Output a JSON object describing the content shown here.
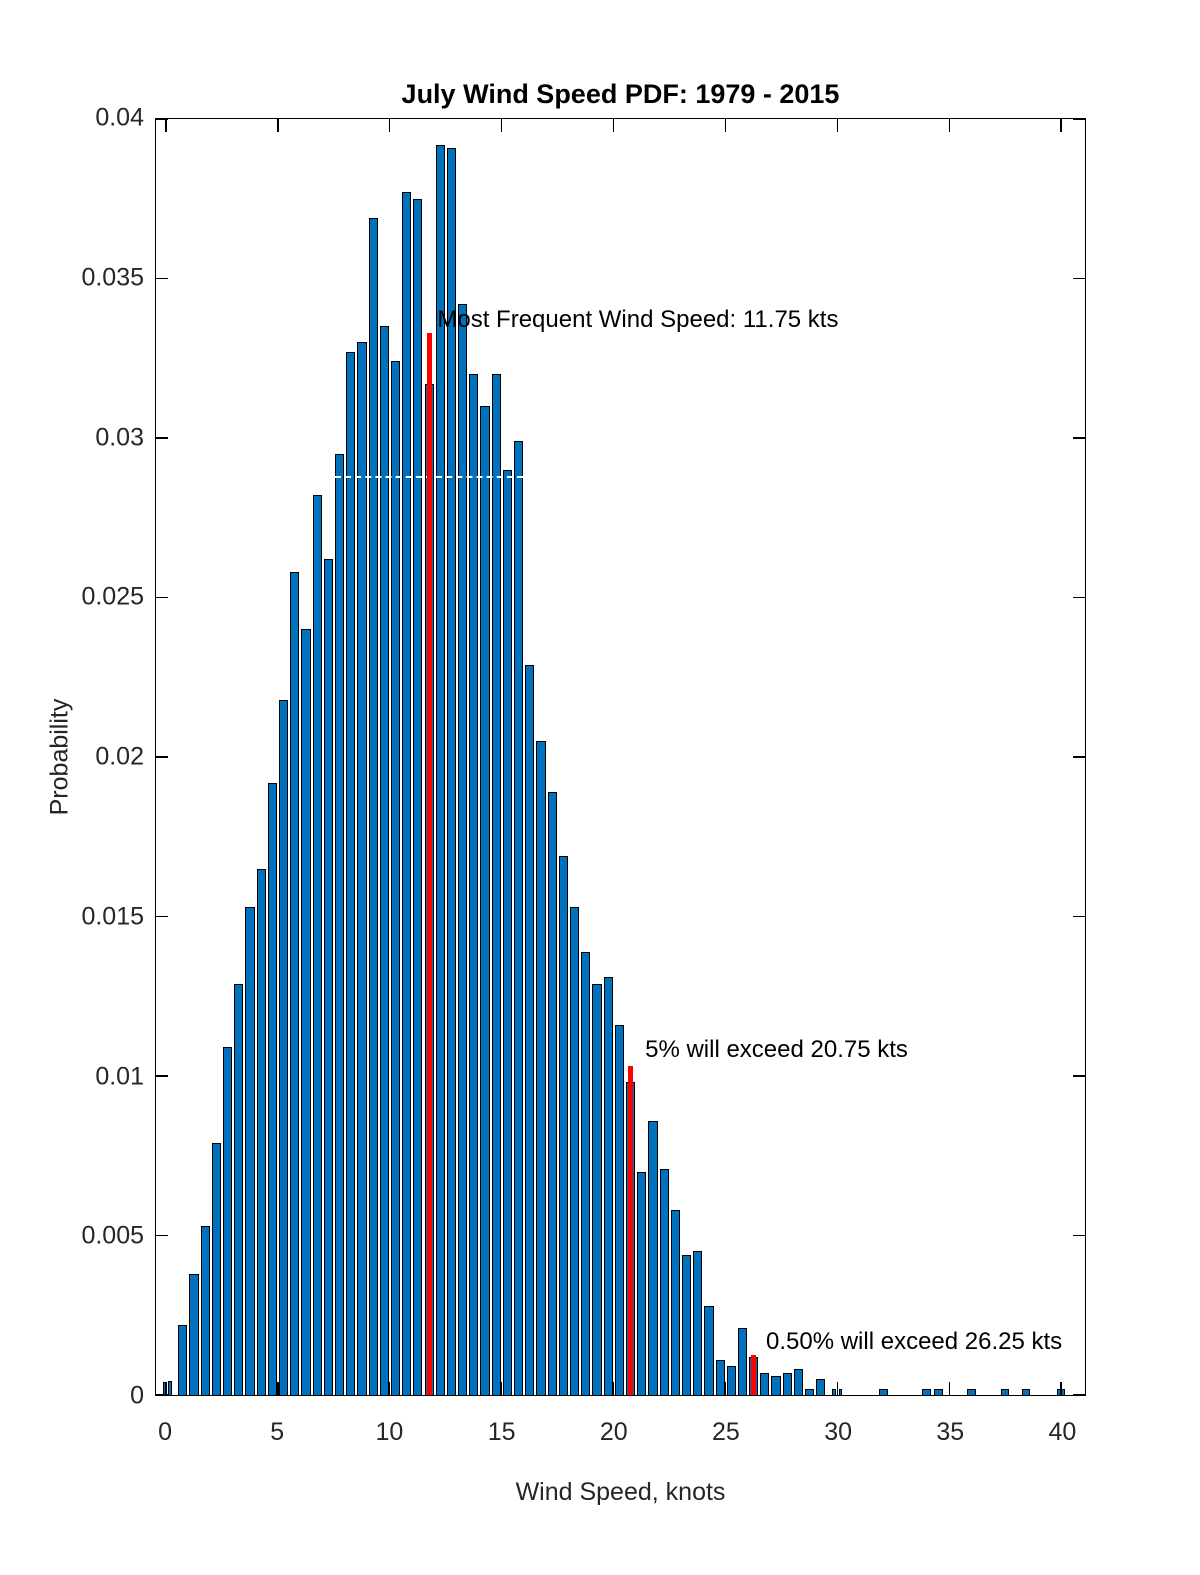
{
  "chart_data": {
    "type": "bar",
    "title": "July Wind Speed PDF: 1979 - 2015",
    "xlabel": "Wind Speed, knots",
    "ylabel": "Probability",
    "xlim": [
      -0.45,
      41.05
    ],
    "ylim": [
      0,
      0.04
    ],
    "grid": false,
    "legend": "none",
    "x_ticks": [
      {
        "value": 0,
        "label": "0"
      },
      {
        "value": 5,
        "label": "5"
      },
      {
        "value": 10,
        "label": "10"
      },
      {
        "value": 15,
        "label": "15"
      },
      {
        "value": 20,
        "label": "20"
      },
      {
        "value": 25,
        "label": "25"
      },
      {
        "value": 30,
        "label": "30"
      },
      {
        "value": 35,
        "label": "35"
      },
      {
        "value": 40,
        "label": "40"
      }
    ],
    "y_ticks": [
      {
        "value": 0,
        "label": "0"
      },
      {
        "value": 0.005,
        "label": "0.005"
      },
      {
        "value": 0.01,
        "label": "0.01"
      },
      {
        "value": 0.015,
        "label": "0.015"
      },
      {
        "value": 0.02,
        "label": "0.02"
      },
      {
        "value": 0.025,
        "label": "0.025"
      },
      {
        "value": 0.03,
        "label": "0.03"
      },
      {
        "value": 0.035,
        "label": "0.035"
      },
      {
        "value": 0.04,
        "label": "0.04"
      }
    ],
    "bin_width_default": 0.5,
    "bars": [
      [
        -0.17,
        0.21,
        0.0004
      ],
      [
        0.06,
        0.21,
        0.00045
      ],
      [
        0.5,
        0.5,
        0.0022
      ],
      [
        1.0,
        0.5,
        0.0038
      ],
      [
        1.5,
        0.5,
        0.0053
      ],
      [
        2.0,
        0.5,
        0.0079
      ],
      [
        2.5,
        0.5,
        0.0109
      ],
      [
        3.0,
        0.5,
        0.0129
      ],
      [
        3.5,
        0.5,
        0.0153
      ],
      [
        4.0,
        0.5,
        0.0165
      ],
      [
        4.5,
        0.5,
        0.0192
      ],
      [
        5.0,
        0.5,
        0.0218
      ],
      [
        5.5,
        0.5,
        0.0258
      ],
      [
        6.0,
        0.5,
        0.024
      ],
      [
        6.5,
        0.5,
        0.0282
      ],
      [
        7.0,
        0.5,
        0.0262
      ],
      [
        7.5,
        0.5,
        0.0295
      ],
      [
        8.0,
        0.5,
        0.0327
      ],
      [
        8.5,
        0.5,
        0.033
      ],
      [
        9.0,
        0.5,
        0.0369
      ],
      [
        9.5,
        0.5,
        0.0335
      ],
      [
        10.0,
        0.5,
        0.0324
      ],
      [
        10.5,
        0.5,
        0.0377
      ],
      [
        11.0,
        0.5,
        0.0375
      ],
      [
        11.5,
        0.5,
        0.0317
      ],
      [
        12.0,
        0.5,
        0.0392
      ],
      [
        12.5,
        0.5,
        0.0391
      ],
      [
        13.0,
        0.5,
        0.0342
      ],
      [
        13.5,
        0.5,
        0.032
      ],
      [
        14.0,
        0.5,
        0.031
      ],
      [
        14.5,
        0.5,
        0.032
      ],
      [
        15.0,
        0.5,
        0.029
      ],
      [
        15.5,
        0.5,
        0.0299
      ],
      [
        16.0,
        0.5,
        0.0229
      ],
      [
        16.5,
        0.5,
        0.0205
      ],
      [
        17.0,
        0.5,
        0.0189
      ],
      [
        17.5,
        0.5,
        0.0169
      ],
      [
        18.0,
        0.5,
        0.0153
      ],
      [
        18.5,
        0.5,
        0.0139
      ],
      [
        19.0,
        0.5,
        0.0129
      ],
      [
        19.5,
        0.5,
        0.0131
      ],
      [
        20.0,
        0.5,
        0.0116
      ],
      [
        20.5,
        0.5,
        0.0098
      ],
      [
        21.0,
        0.5,
        0.007
      ],
      [
        21.5,
        0.5,
        0.0086
      ],
      [
        22.0,
        0.5,
        0.0071
      ],
      [
        22.5,
        0.5,
        0.0058
      ],
      [
        23.0,
        0.5,
        0.0044
      ],
      [
        23.5,
        0.5,
        0.0045
      ],
      [
        24.0,
        0.5,
        0.0028
      ],
      [
        24.5,
        0.5,
        0.0011
      ],
      [
        25.0,
        0.5,
        0.0009
      ],
      [
        25.5,
        0.5,
        0.0021
      ],
      [
        26.0,
        0.5,
        0.0012
      ],
      [
        26.5,
        0.5,
        0.0007
      ],
      [
        27.0,
        0.5,
        0.0006
      ],
      [
        27.5,
        0.5,
        0.0007
      ],
      [
        28.0,
        0.5,
        0.0008
      ],
      [
        28.5,
        0.5,
        0.0002
      ],
      [
        29.0,
        0.5,
        0.0005
      ],
      [
        29.72,
        0.21,
        0.0002
      ],
      [
        30.02,
        0.21,
        0.0002
      ],
      [
        31.8,
        0.5,
        0.0002
      ],
      [
        33.75,
        0.45,
        0.0002
      ],
      [
        34.28,
        0.45,
        0.0002
      ],
      [
        35.75,
        0.45,
        0.0002
      ],
      [
        37.25,
        0.45,
        0.0002
      ],
      [
        38.2,
        0.45,
        0.0002
      ],
      [
        39.75,
        0.45,
        0.0002
      ]
    ],
    "markers": [
      {
        "x": 11.75,
        "height": 0.0333,
        "label": "most-frequent"
      },
      {
        "x": 20.75,
        "height": 0.0103,
        "label": "5-percent-exceedance"
      },
      {
        "x": 26.25,
        "height": 0.00125,
        "label": "0.5-percent-exceedance"
      }
    ],
    "annotations": [
      {
        "text": "Most Frequent Wind Speed: 11.75 kts",
        "x": 12.12,
        "y": 0.0337
      },
      {
        "text": "5% will exceed 20.75 kts",
        "x": 21.4,
        "y": 0.0108
      },
      {
        "text": "0.50% will exceed 26.25 kts",
        "x": 26.8,
        "y": 0.00165
      }
    ],
    "dashed_segment": {
      "y": 0.0288,
      "x1": 7.55,
      "x2": 15.93
    },
    "colors": {
      "bar_fill": "#0072BD",
      "bar_edge": "#000000",
      "threshold_line": "#FF0000",
      "dashed_segment": "#FFFFFF",
      "axis": "#000000",
      "tick_label": "#262626"
    }
  }
}
